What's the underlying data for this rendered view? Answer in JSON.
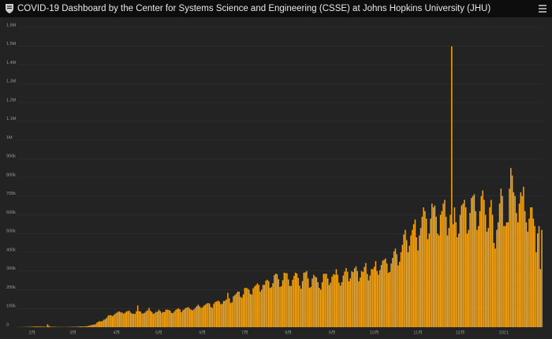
{
  "chart_data": {
    "type": "bar",
    "title": "COVID-19 Dashboard by the Center for Systems Science and Engineering (CSSE) at Johns Hopkins University (JHU)",
    "color": "#f5a518",
    "grid": true,
    "ylim": [
      0,
      1600000
    ],
    "yticks": [
      0,
      {
        "value": 100000,
        "label": "100k"
      },
      {
        "value": 200000,
        "label": "200k"
      },
      {
        "value": 300000,
        "label": "300k"
      },
      {
        "value": 400000,
        "label": "400k"
      },
      {
        "value": 500000,
        "label": "500k"
      },
      {
        "value": 600000,
        "label": "600k"
      },
      {
        "value": 700000,
        "label": "700k"
      },
      {
        "value": 800000,
        "label": "800k"
      },
      {
        "value": 900000,
        "label": "900k"
      },
      {
        "value": 1000000,
        "label": "1M"
      },
      {
        "value": 1100000,
        "label": "1.1M"
      },
      {
        "value": 1200000,
        "label": "1.2M"
      },
      {
        "value": 1300000,
        "label": "1.3M"
      },
      {
        "value": 1400000,
        "label": "1.4M"
      },
      {
        "value": 1500000,
        "label": "1.5M"
      },
      {
        "value": 1600000,
        "label": "1.6M"
      }
    ],
    "categories": [
      null,
      null,
      null,
      null,
      null,
      null,
      null,
      null,
      null,
      null,
      "2月",
      null,
      null,
      null,
      null,
      null,
      null,
      null,
      null,
      null,
      null,
      null,
      null,
      null,
      null,
      null,
      null,
      null,
      null,
      null,
      null,
      null,
      null,
      null,
      null,
      null,
      null,
      null,
      null,
      "3月",
      null,
      null,
      null,
      null,
      null,
      null,
      null,
      null,
      null,
      null,
      null,
      null,
      null,
      null,
      null,
      null,
      null,
      null,
      null,
      null,
      null,
      null,
      null,
      null,
      null,
      null,
      null,
      null,
      null,
      null,
      "4月",
      null,
      null,
      null,
      null,
      null,
      null,
      null,
      null,
      null,
      null,
      null,
      null,
      null,
      null,
      null,
      null,
      null,
      null,
      null,
      null,
      null,
      null,
      null,
      null,
      null,
      null,
      null,
      null,
      null,
      "5月",
      null,
      null,
      null,
      null,
      null,
      null,
      null,
      null,
      null,
      null,
      null,
      null,
      null,
      null,
      null,
      null,
      null,
      null,
      null,
      null,
      null,
      null,
      null,
      null,
      null,
      null,
      null,
      null,
      null,
      null,
      "6月",
      null,
      null,
      null,
      null,
      null,
      null,
      null,
      null,
      null,
      null,
      null,
      null,
      null,
      null,
      null,
      null,
      null,
      null,
      null,
      null,
      null,
      null,
      null,
      null,
      null,
      null,
      null,
      null,
      null,
      "7月",
      null,
      null,
      null,
      null,
      null,
      null,
      null,
      null,
      null,
      null,
      null,
      null,
      null,
      null,
      null,
      null,
      null,
      null,
      null,
      null,
      null,
      null,
      null,
      null,
      null,
      null,
      null,
      null,
      null,
      null,
      "8月",
      null,
      null,
      null,
      null,
      null,
      null,
      null,
      null,
      null,
      null,
      null,
      null,
      null,
      null,
      null,
      null,
      null,
      null,
      null,
      null,
      null,
      null,
      null,
      null,
      null,
      null,
      null,
      null,
      null,
      null,
      "9月",
      null,
      null,
      null,
      null,
      null,
      null,
      null,
      null,
      null,
      null,
      null,
      null,
      null,
      null,
      null,
      null,
      null,
      null,
      null,
      null,
      null,
      null,
      null,
      null,
      null,
      null,
      null,
      null,
      null,
      "10月",
      null,
      null,
      null,
      null,
      null,
      null,
      null,
      null,
      null,
      null,
      null,
      null,
      null,
      null,
      null,
      null,
      null,
      null,
      null,
      null,
      null,
      null,
      null,
      null,
      null,
      null,
      null,
      null,
      null,
      null,
      "11月",
      null,
      null,
      null,
      null,
      null,
      null,
      null,
      null,
      null,
      null,
      null,
      null,
      null,
      null,
      null,
      null,
      null,
      null,
      null,
      null,
      null,
      null,
      null,
      null,
      null,
      null,
      null,
      null,
      null,
      "12月",
      null,
      null,
      null,
      null,
      null,
      null,
      null,
      null,
      null,
      null,
      null,
      null,
      null,
      null,
      null,
      null,
      null,
      null,
      null,
      null,
      null,
      null,
      null,
      null,
      null,
      null,
      null,
      null,
      null,
      null,
      "2021",
      null,
      null,
      null,
      null,
      null,
      null,
      null,
      null,
      null,
      null,
      null,
      null,
      null,
      null,
      null,
      null,
      null,
      null,
      null,
      null,
      null,
      null,
      null,
      null,
      null,
      null,
      null
    ],
    "values": [
      550,
      100,
      300,
      600,
      700,
      800,
      1700,
      1300,
      1800,
      2000,
      2600,
      2800,
      3200,
      3900,
      3700,
      3200,
      3400,
      2700,
      3100,
      2600,
      2000,
      15100,
      6500,
      2600,
      2100,
      2000,
      2000,
      1900,
      600,
      1000,
      1000,
      600,
      1000,
      500,
      900,
      800,
      1000,
      1300,
      1900,
      2200,
      1900,
      2300,
      2800,
      2800,
      3900,
      4000,
      3900,
      3700,
      4500,
      4700,
      7500,
      9300,
      10600,
      12800,
      13900,
      16300,
      24000,
      29000,
      32000,
      30000,
      34000,
      40000,
      43000,
      50000,
      62000,
      64000,
      64000,
      59000,
      65000,
      72000,
      77000,
      82000,
      84000,
      79000,
      78000,
      72000,
      77000,
      84000,
      86000,
      88000,
      78000,
      72000,
      72000,
      71000,
      85000,
      116000,
      85000,
      84000,
      73000,
      74000,
      77000,
      85000,
      90000,
      103000,
      88000,
      81000,
      71000,
      75000,
      82000,
      82000,
      93000,
      86000,
      77000,
      81000,
      81000,
      93000,
      94000,
      92000,
      89000,
      77000,
      75000,
      84000,
      93000,
      97000,
      100000,
      95000,
      80000,
      90000,
      95000,
      102000,
      105000,
      107000,
      99000,
      93000,
      90000,
      96000,
      104000,
      113000,
      120000,
      111000,
      103000,
      106000,
      115000,
      120000,
      126000,
      129000,
      126000,
      108000,
      103000,
      125000,
      135000,
      137000,
      142000,
      137000,
      123000,
      125000,
      140000,
      141000,
      148000,
      183000,
      154000,
      129000,
      133000,
      165000,
      172000,
      180000,
      190000,
      190000,
      162000,
      157000,
      175000,
      210000,
      210000,
      207000,
      200000,
      178000,
      174000,
      208000,
      218000,
      225000,
      234000,
      226000,
      190000,
      200000,
      226000,
      226000,
      248000,
      254000,
      246000,
      209000,
      214000,
      235000,
      278000,
      286000,
      283000,
      256000,
      215000,
      219000,
      251000,
      291000,
      289000,
      288000,
      255000,
      220000,
      221000,
      253000,
      274000,
      291000,
      287000,
      263000,
      222000,
      205000,
      246000,
      291000,
      293000,
      300000,
      260000,
      210000,
      215000,
      260000,
      280000,
      270000,
      265000,
      240000,
      210000,
      200000,
      240000,
      285000,
      285000,
      286000,
      260000,
      225000,
      238000,
      270000,
      283000,
      280000,
      310000,
      280000,
      238000,
      222000,
      240000,
      276000,
      297000,
      316000,
      296000,
      245000,
      261000,
      298000,
      294000,
      314000,
      325000,
      300000,
      245000,
      265000,
      300000,
      295000,
      322000,
      343000,
      285000,
      250000,
      276000,
      310000,
      310000,
      323000,
      353000,
      300000,
      280000,
      305000,
      332000,
      355000,
      360000,
      367000,
      340000,
      290000,
      295000,
      340000,
      370000,
      405000,
      420000,
      390000,
      330000,
      350000,
      400000,
      440000,
      495000,
      520000,
      465000,
      400000,
      435000,
      490000,
      520000,
      550000,
      575000,
      480000,
      410000,
      490000,
      530000,
      590000,
      640000,
      620000,
      580000,
      470000,
      500000,
      580000,
      660000,
      640000,
      650000,
      590000,
      500000,
      490000,
      600000,
      620000,
      660000,
      680000,
      590000,
      490000,
      530000,
      600000,
      1500000,
      550000,
      640000,
      560000,
      480000,
      500000,
      600000,
      650000,
      660000,
      680000,
      640000,
      500000,
      520000,
      610000,
      690000,
      700000,
      710000,
      620000,
      520000,
      540000,
      620000,
      700000,
      730000,
      680000,
      600000,
      510000,
      530000,
      640000,
      680000,
      600000,
      450000,
      420000,
      520000,
      560000,
      660000,
      740000,
      700000,
      540000,
      540000,
      560000,
      560000,
      740000,
      850000,
      810000,
      720000,
      700000,
      610000,
      560000,
      660000,
      720000,
      700000,
      750000,
      620000,
      560000,
      510000,
      580000,
      640000,
      640000,
      580000,
      540000,
      400000,
      500000,
      540000,
      310000,
      520000
    ]
  }
}
